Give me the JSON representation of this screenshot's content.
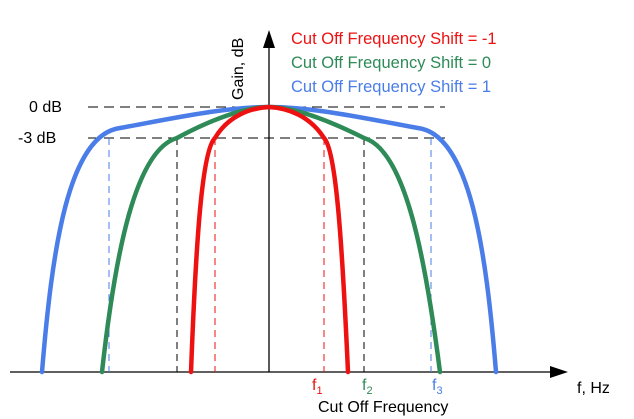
{
  "labels": {
    "y_axis": "Gain, dB",
    "x_axis": "f, Hz",
    "zero_db": "0 dB",
    "minus3_db": "-3 dB",
    "cutoff_caption": "Cut Off Frequency"
  },
  "legend": [
    {
      "text": "Cut Off Frequency Shift = -1",
      "color": "#ee1111"
    },
    {
      "text": "Cut Off Frequency Shift =  0",
      "color": "#2e8b57"
    },
    {
      "text": "Cut Off Frequency Shift =  1",
      "color": "#4a7de8"
    }
  ],
  "markers": [
    {
      "letter": "f",
      "sub": "1",
      "color": "#ee1111"
    },
    {
      "letter": "f",
      "sub": "2",
      "color": "#2e8b57"
    },
    {
      "letter": "f",
      "sub": "3",
      "color": "#4a7de8"
    }
  ],
  "colors": {
    "axis": "#000000",
    "red": "#ee1111",
    "green": "#2e8b57",
    "blue": "#4a7de8"
  }
}
